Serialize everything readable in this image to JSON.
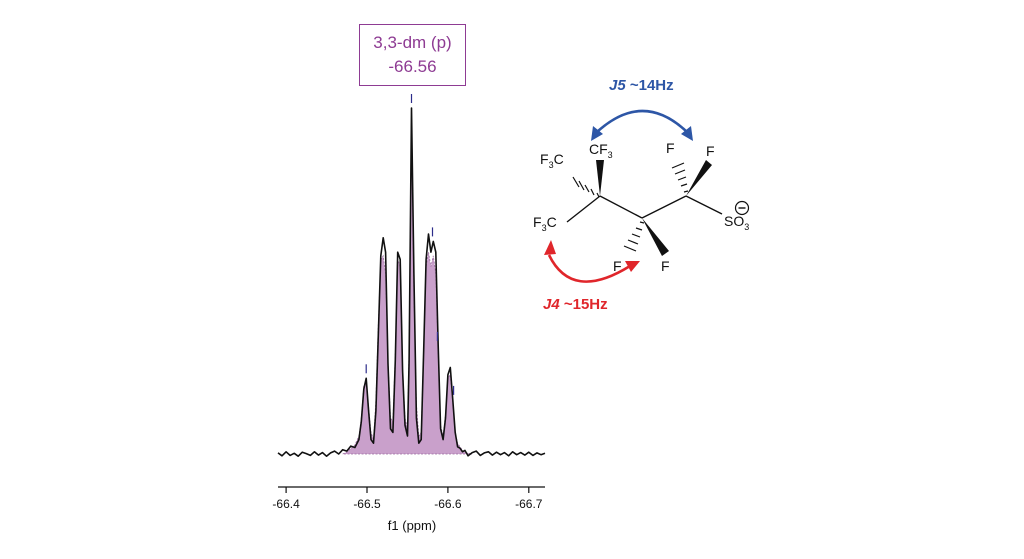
{
  "annotation": {
    "line1": "3,3-dm (p)",
    "line2": "-66.56"
  },
  "chart_data": {
    "type": "line",
    "title": "",
    "xlabel": "f1 (ppm)",
    "ylabel": "",
    "x_reversed": true,
    "xlim": [
      -66.39,
      -66.72
    ],
    "xticks": [
      -66.4,
      -66.5,
      -66.6,
      -66.7
    ],
    "xtick_labels": [
      "-66.4",
      "-66.5",
      "-66.6",
      "-66.7"
    ],
    "grid": false,
    "legend": "none",
    "peak_markers_ppm": [
      -66.499,
      -66.555,
      -66.581,
      -66.587,
      -66.607
    ],
    "series": [
      {
        "style": "experimental-black-line",
        "x": [
          -66.39,
          -66.395,
          -66.4,
          -66.405,
          -66.41,
          -66.415,
          -66.42,
          -66.425,
          -66.43,
          -66.435,
          -66.44,
          -66.445,
          -66.45,
          -66.455,
          -66.46,
          -66.465,
          -66.47,
          -66.475,
          -66.48,
          -66.485,
          -66.49,
          -66.493,
          -66.496,
          -66.499,
          -66.502,
          -66.505,
          -66.508,
          -66.511,
          -66.514,
          -66.517,
          -66.52,
          -66.523,
          -66.526,
          -66.529,
          -66.532,
          -66.535,
          -66.538,
          -66.541,
          -66.544,
          -66.547,
          -66.55,
          -66.552,
          -66.555,
          -66.558,
          -66.561,
          -66.564,
          -66.567,
          -66.57,
          -66.573,
          -66.576,
          -66.579,
          -66.582,
          -66.585,
          -66.588,
          -66.591,
          -66.594,
          -66.597,
          -66.6,
          -66.603,
          -66.606,
          -66.609,
          -66.612,
          -66.615,
          -66.618,
          -66.621,
          -66.625,
          -66.63,
          -66.635,
          -66.64,
          -66.645,
          -66.65,
          -66.655,
          -66.66,
          -66.665,
          -66.67,
          -66.675,
          -66.68,
          -66.685,
          -66.69,
          -66.695,
          -66.7,
          -66.705,
          -66.71,
          -66.715,
          -66.72
        ],
        "y": [
          0.003,
          -0.005,
          0.006,
          -0.004,
          0.002,
          -0.006,
          0.005,
          0.001,
          -0.004,
          0.006,
          -0.003,
          0.004,
          -0.006,
          0.003,
          0.008,
          0.0,
          0.012,
          0.008,
          0.022,
          0.018,
          0.04,
          0.09,
          0.18,
          0.21,
          0.12,
          0.04,
          0.03,
          0.12,
          0.33,
          0.55,
          0.6,
          0.56,
          0.25,
          0.07,
          0.06,
          0.26,
          0.56,
          0.54,
          0.23,
          0.08,
          0.05,
          0.26,
          0.96,
          0.5,
          0.1,
          0.03,
          0.04,
          0.28,
          0.54,
          0.61,
          0.56,
          0.59,
          0.56,
          0.3,
          0.07,
          0.04,
          0.1,
          0.22,
          0.24,
          0.15,
          0.06,
          0.02,
          0.016,
          0.006,
          0.01,
          -0.005,
          0.004,
          0.008,
          -0.004,
          0.003,
          0.006,
          -0.003,
          0.005,
          -0.002,
          0.004,
          -0.005,
          0.006,
          -0.002,
          0.004,
          -0.003,
          0.005,
          -0.004,
          0.003,
          -0.002,
          0.002
        ]
      },
      {
        "style": "simulated-purple-fill",
        "x": [
          -66.47,
          -66.475,
          -66.48,
          -66.485,
          -66.49,
          -66.493,
          -66.496,
          -66.499,
          -66.502,
          -66.505,
          -66.508,
          -66.511,
          -66.514,
          -66.517,
          -66.52,
          -66.523,
          -66.526,
          -66.529,
          -66.532,
          -66.535,
          -66.538,
          -66.541,
          -66.544,
          -66.547,
          -66.55,
          -66.552,
          -66.555,
          -66.558,
          -66.561,
          -66.564,
          -66.567,
          -66.57,
          -66.573,
          -66.576,
          -66.579,
          -66.582,
          -66.585,
          -66.588,
          -66.591,
          -66.594,
          -66.597,
          -66.6,
          -66.603,
          -66.606,
          -66.609,
          -66.612,
          -66.615,
          -66.618,
          -66.621,
          -66.625,
          -66.63
        ],
        "y": [
          0.0,
          0.005,
          0.015,
          0.025,
          0.05,
          0.1,
          0.19,
          0.2,
          0.13,
          0.06,
          0.04,
          0.15,
          0.36,
          0.54,
          0.55,
          0.5,
          0.26,
          0.1,
          0.09,
          0.28,
          0.54,
          0.52,
          0.24,
          0.1,
          0.07,
          0.3,
          0.92,
          0.45,
          0.14,
          0.05,
          0.06,
          0.29,
          0.52,
          0.56,
          0.52,
          0.55,
          0.5,
          0.28,
          0.08,
          0.05,
          0.11,
          0.21,
          0.22,
          0.14,
          0.06,
          0.03,
          0.02,
          0.01,
          0.005,
          0.002,
          0.0
        ]
      }
    ]
  },
  "molecule": {
    "labels": {
      "cf3_top": "CF",
      "cf3_top_sub": "3",
      "f3c_upper": "F",
      "f3c_upper_sub": "3",
      "f3c_upper_c": "C",
      "f3c_lower": "F",
      "f3c_lower_sub": "3",
      "f3c_lower_c": "C",
      "f_top_left": "F",
      "f_top_right": "F",
      "f_bottom_left": "F",
      "f_bottom_right": "F",
      "so3": "SO",
      "so3_sub": "3",
      "charge": "−"
    },
    "coupling_j5": {
      "label": "J5",
      "value": " ~14Hz",
      "color": "#2d56a6"
    },
    "coupling_j4": {
      "label": "J4",
      "value": " ~15Hz",
      "color": "#e0262b"
    }
  },
  "colors": {
    "experimental": "#111111",
    "simulated_fill": "#c9a0cb",
    "simulated_edge": "#9b6aa0",
    "annotation": "#8e3b93",
    "marker": "#2d2d8a"
  }
}
